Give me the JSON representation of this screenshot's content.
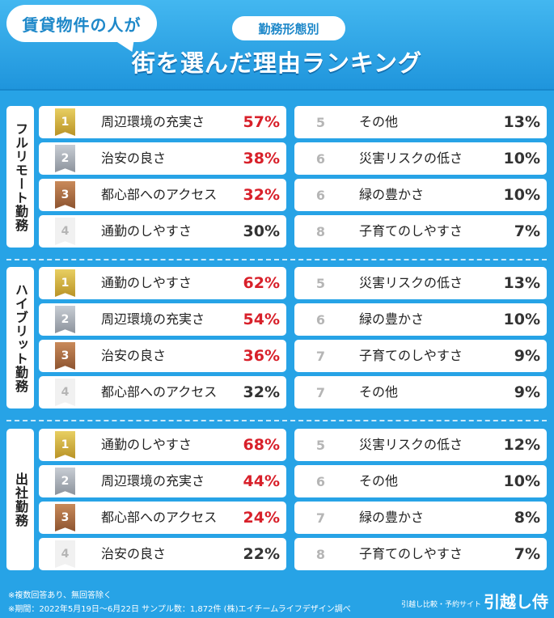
{
  "header": {
    "bubble": "賃貸物件の人が",
    "subtitle": "勤務形態別",
    "title": "街を選んだ理由ランキング"
  },
  "chart_data": {
    "type": "table",
    "columns": [
      "rank",
      "reason",
      "percent"
    ],
    "sections": [
      {
        "label": "フルリモート勤務",
        "rows": [
          {
            "rank": "1",
            "reason": "周辺環境の充実さ",
            "percent": "57%",
            "value": 57
          },
          {
            "rank": "2",
            "reason": "治安の良さ",
            "percent": "38%",
            "value": 38
          },
          {
            "rank": "3",
            "reason": "都心部へのアクセス",
            "percent": "32%",
            "value": 32
          },
          {
            "rank": "4",
            "reason": "通勤のしやすさ",
            "percent": "30%",
            "value": 30
          },
          {
            "rank": "5",
            "reason": "その他",
            "percent": "13%",
            "value": 13
          },
          {
            "rank": "6",
            "reason": "災害リスクの低さ",
            "percent": "10%",
            "value": 10
          },
          {
            "rank": "6",
            "reason": "緑の豊かさ",
            "percent": "10%",
            "value": 10
          },
          {
            "rank": "8",
            "reason": "子育てのしやすさ",
            "percent": "7%",
            "value": 7
          }
        ]
      },
      {
        "label": "ハイブリット勤務",
        "rows": [
          {
            "rank": "1",
            "reason": "通勤のしやすさ",
            "percent": "62%",
            "value": 62
          },
          {
            "rank": "2",
            "reason": "周辺環境の充実さ",
            "percent": "54%",
            "value": 54
          },
          {
            "rank": "3",
            "reason": "治安の良さ",
            "percent": "36%",
            "value": 36
          },
          {
            "rank": "4",
            "reason": "都心部へのアクセス",
            "percent": "32%",
            "value": 32
          },
          {
            "rank": "5",
            "reason": "災害リスクの低さ",
            "percent": "13%",
            "value": 13
          },
          {
            "rank": "6",
            "reason": "緑の豊かさ",
            "percent": "10%",
            "value": 10
          },
          {
            "rank": "7",
            "reason": "子育てのしやすさ",
            "percent": "9%",
            "value": 9
          },
          {
            "rank": "7",
            "reason": "その他",
            "percent": "9%",
            "value": 9
          }
        ]
      },
      {
        "label": "出社勤務",
        "rows": [
          {
            "rank": "1",
            "reason": "通勤のしやすさ",
            "percent": "68%",
            "value": 68
          },
          {
            "rank": "2",
            "reason": "周辺環境の充実さ",
            "percent": "44%",
            "value": 44
          },
          {
            "rank": "3",
            "reason": "都心部へのアクセス",
            "percent": "24%",
            "value": 24
          },
          {
            "rank": "4",
            "reason": "治安の良さ",
            "percent": "22%",
            "value": 22
          },
          {
            "rank": "5",
            "reason": "災害リスクの低さ",
            "percent": "12%",
            "value": 12
          },
          {
            "rank": "6",
            "reason": "その他",
            "percent": "10%",
            "value": 10
          },
          {
            "rank": "7",
            "reason": "緑の豊かさ",
            "percent": "8%",
            "value": 8
          },
          {
            "rank": "8",
            "reason": "子育てのしやすさ",
            "percent": "7%",
            "value": 7
          }
        ]
      }
    ]
  },
  "footer": {
    "note1": "※複数回答あり、無回答除く",
    "note2": "※期間：2022年5月19日〜6月22日 サンプル数：1,872件 (株)エイチームライフデザイン調べ",
    "site_caption": "引越し比較・予約サイト",
    "site_name": "引越し侍"
  },
  "colors": {
    "background": "#27a3e6",
    "highlight_percent": "#d8202a",
    "gold": "#c9a63a",
    "silver": "#a3a9b1",
    "bronze": "#a96a3e"
  }
}
